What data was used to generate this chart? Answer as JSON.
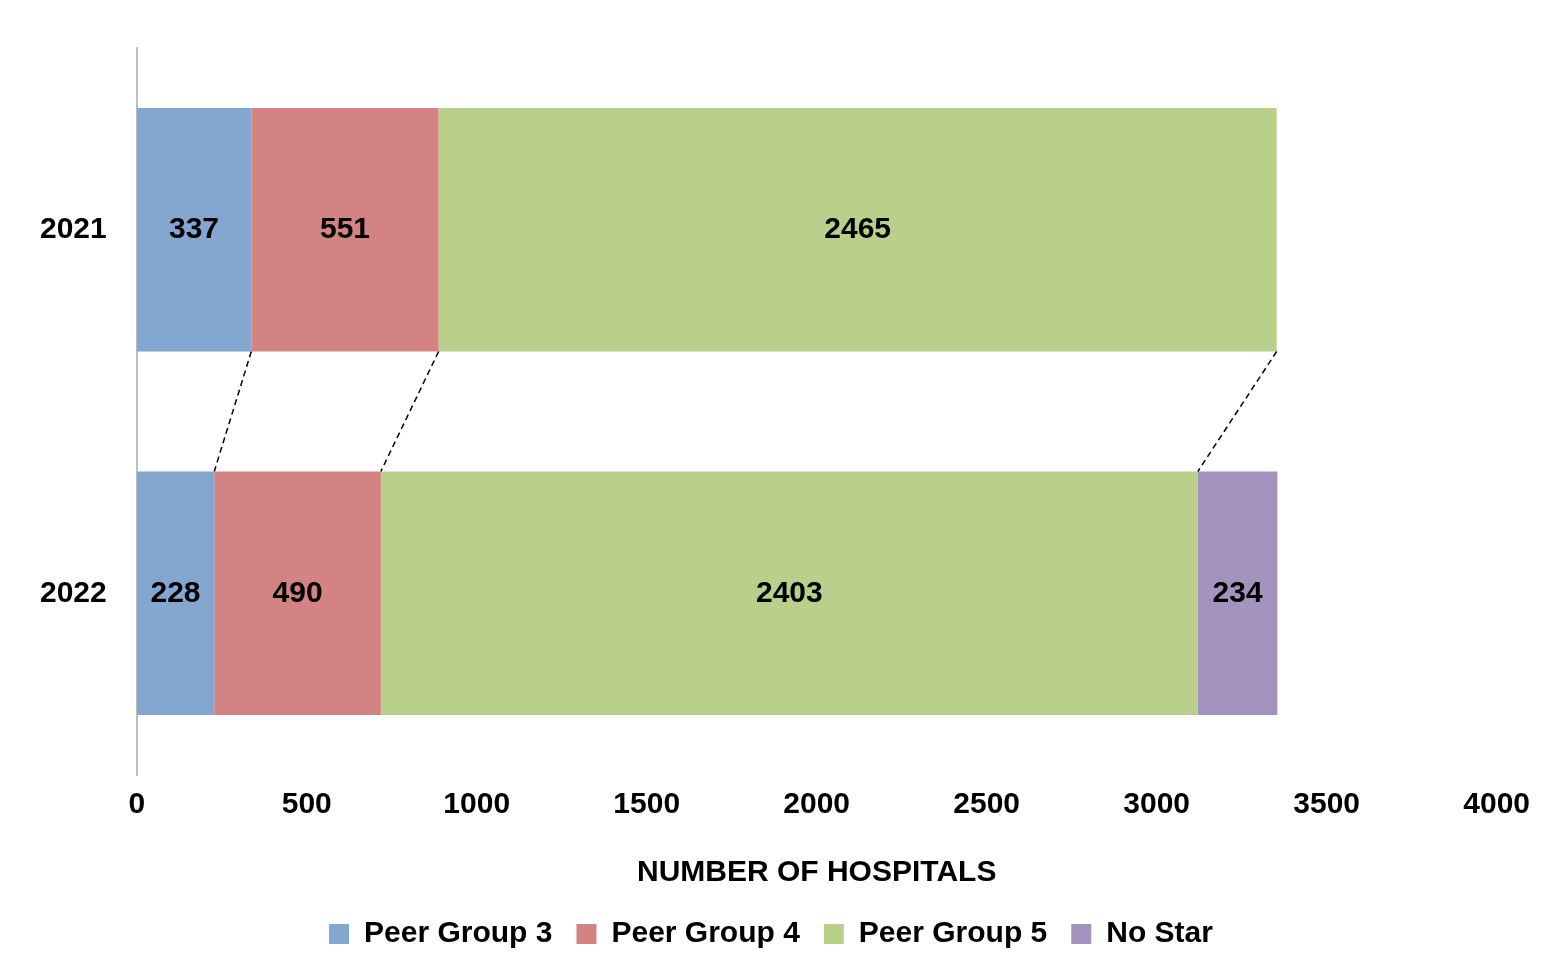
{
  "chart_data": {
    "type": "bar",
    "orientation": "horizontal",
    "stacked": true,
    "categories": [
      "2021",
      "2022"
    ],
    "series": [
      {
        "name": "Peer Group 3",
        "color": "#84a7d1",
        "values": [
          337,
          228
        ]
      },
      {
        "name": "Peer Group 4",
        "color": "#d38381",
        "values": [
          551,
          490
        ]
      },
      {
        "name": "Peer Group 5",
        "color": "#b9d08b",
        "values": [
          2465,
          2403
        ]
      },
      {
        "name": "No Star",
        "color": "#a593bf",
        "values": [
          null,
          234
        ]
      }
    ],
    "xlabel": "NUMBER OF HOSPITALS",
    "xlim": [
      0,
      4000
    ],
    "xticks": [
      0,
      500,
      1000,
      1500,
      2000,
      2500,
      3000,
      3500,
      4000
    ],
    "grid": false,
    "legend": "bottom",
    "data_labels": true
  }
}
